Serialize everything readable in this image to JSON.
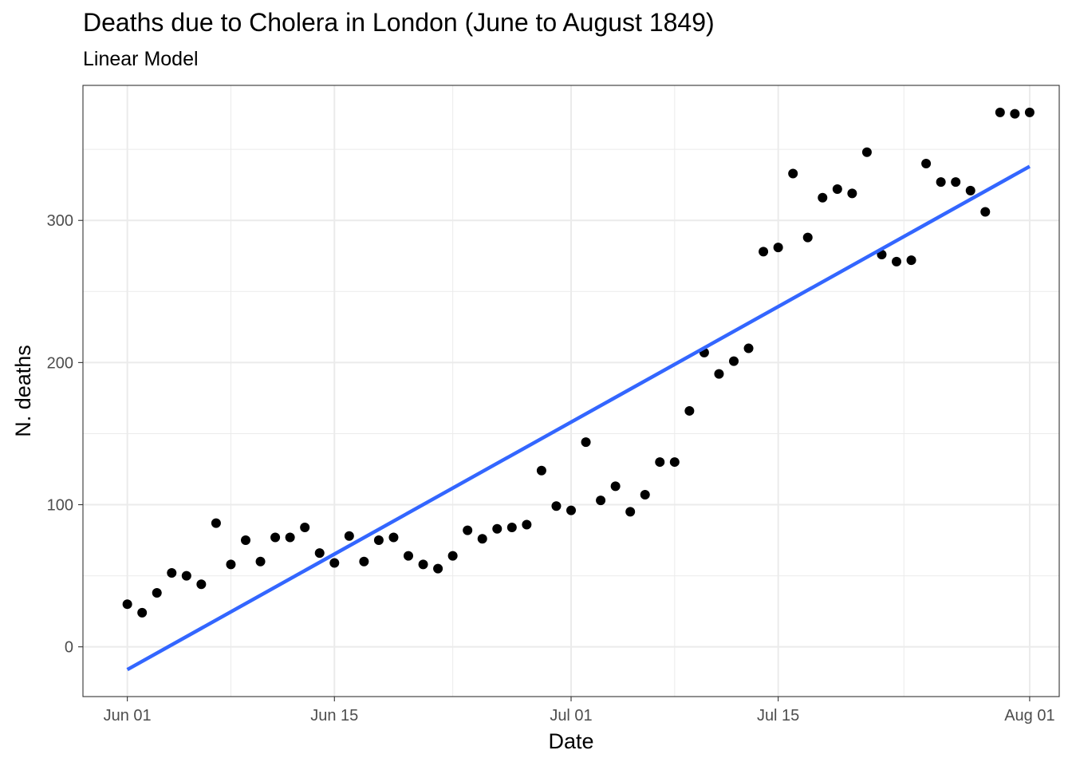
{
  "chart_data": {
    "type": "scatter",
    "title": "Deaths due to Cholera in London (June to August 1849)",
    "subtitle": "Linear Model",
    "xlabel": "Date",
    "ylabel": "N. deaths",
    "x_ticks": [
      {
        "date": "1849-06-01",
        "label": "Jun 01"
      },
      {
        "date": "1849-06-15",
        "label": "Jun 15"
      },
      {
        "date": "1849-07-01",
        "label": "Jul 01"
      },
      {
        "date": "1849-07-15",
        "label": "Jul 15"
      },
      {
        "date": "1849-08-01",
        "label": "Aug 01"
      }
    ],
    "y_ticks": [
      0,
      100,
      200,
      300
    ],
    "xlim": [
      "1849-05-29",
      "1849-08-03"
    ],
    "ylim": [
      -35,
      395
    ],
    "grid": true,
    "point_color": "#000000",
    "line_color": "#3366FF",
    "points": [
      {
        "x": "1849-06-01",
        "y": 30
      },
      {
        "x": "1849-06-02",
        "y": 24
      },
      {
        "x": "1849-06-03",
        "y": 38
      },
      {
        "x": "1849-06-04",
        "y": 52
      },
      {
        "x": "1849-06-05",
        "y": 50
      },
      {
        "x": "1849-06-06",
        "y": 44
      },
      {
        "x": "1849-06-07",
        "y": 87
      },
      {
        "x": "1849-06-08",
        "y": 58
      },
      {
        "x": "1849-06-09",
        "y": 75
      },
      {
        "x": "1849-06-10",
        "y": 60
      },
      {
        "x": "1849-06-11",
        "y": 77
      },
      {
        "x": "1849-06-12",
        "y": 77
      },
      {
        "x": "1849-06-13",
        "y": 84
      },
      {
        "x": "1849-06-14",
        "y": 66
      },
      {
        "x": "1849-06-15",
        "y": 59
      },
      {
        "x": "1849-06-16",
        "y": 78
      },
      {
        "x": "1849-06-17",
        "y": 60
      },
      {
        "x": "1849-06-18",
        "y": 75
      },
      {
        "x": "1849-06-19",
        "y": 77
      },
      {
        "x": "1849-06-20",
        "y": 64
      },
      {
        "x": "1849-06-21",
        "y": 58
      },
      {
        "x": "1849-06-22",
        "y": 55
      },
      {
        "x": "1849-06-23",
        "y": 64
      },
      {
        "x": "1849-06-24",
        "y": 82
      },
      {
        "x": "1849-06-25",
        "y": 76
      },
      {
        "x": "1849-06-26",
        "y": 83
      },
      {
        "x": "1849-06-27",
        "y": 84
      },
      {
        "x": "1849-06-28",
        "y": 86
      },
      {
        "x": "1849-06-29",
        "y": 124
      },
      {
        "x": "1849-06-30",
        "y": 99
      },
      {
        "x": "1849-07-01",
        "y": 96
      },
      {
        "x": "1849-07-02",
        "y": 144
      },
      {
        "x": "1849-07-03",
        "y": 103
      },
      {
        "x": "1849-07-04",
        "y": 113
      },
      {
        "x": "1849-07-05",
        "y": 95
      },
      {
        "x": "1849-07-06",
        "y": 107
      },
      {
        "x": "1849-07-07",
        "y": 130
      },
      {
        "x": "1849-07-08",
        "y": 130
      },
      {
        "x": "1849-07-09",
        "y": 166
      },
      {
        "x": "1849-07-10",
        "y": 207
      },
      {
        "x": "1849-07-11",
        "y": 192
      },
      {
        "x": "1849-07-12",
        "y": 201
      },
      {
        "x": "1849-07-13",
        "y": 210
      },
      {
        "x": "1849-07-14",
        "y": 278
      },
      {
        "x": "1849-07-15",
        "y": 281
      },
      {
        "x": "1849-07-16",
        "y": 333
      },
      {
        "x": "1849-07-17",
        "y": 288
      },
      {
        "x": "1849-07-18",
        "y": 316
      },
      {
        "x": "1849-07-19",
        "y": 322
      },
      {
        "x": "1849-07-20",
        "y": 319
      },
      {
        "x": "1849-07-21",
        "y": 348
      },
      {
        "x": "1849-07-22",
        "y": 276
      },
      {
        "x": "1849-07-23",
        "y": 271
      },
      {
        "x": "1849-07-24",
        "y": 272
      },
      {
        "x": "1849-07-25",
        "y": 340
      },
      {
        "x": "1849-07-26",
        "y": 327
      },
      {
        "x": "1849-07-27",
        "y": 327
      },
      {
        "x": "1849-07-28",
        "y": 321
      },
      {
        "x": "1849-07-29",
        "y": 306
      },
      {
        "x": "1849-07-30",
        "y": 376
      },
      {
        "x": "1849-07-31",
        "y": 375
      },
      {
        "x": "1849-08-01",
        "y": 376
      }
    ],
    "fit_line": {
      "type": "linear",
      "start": {
        "x": "1849-06-01",
        "y": -16
      },
      "end": {
        "x": "1849-08-01",
        "y": 338
      }
    }
  }
}
